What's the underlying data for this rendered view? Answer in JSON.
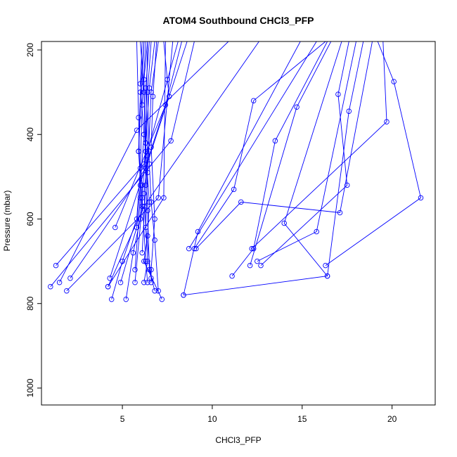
{
  "chart_data": {
    "type": "scatter",
    "title": "ATOM4 Southbound CHCl3_PFP",
    "xlabel": "CHCl3_PFP",
    "ylabel": "Pressure (mbar)",
    "xlim": [
      0.5,
      22.4
    ],
    "ylim": [
      1040,
      180
    ],
    "y_reversed": true,
    "x_ticks": [
      5,
      10,
      15,
      20
    ],
    "y_ticks": [
      200,
      400,
      600,
      800,
      1000
    ],
    "grid": false,
    "legend": "none",
    "style": {
      "line_color": "#0000ff",
      "marker": "open-circle"
    },
    "series": [
      {
        "points": [
          [
            6.2,
            180
          ],
          [
            6.0,
            300
          ],
          [
            5.9,
            440
          ],
          [
            6.1,
            520
          ],
          [
            6.0,
            600
          ],
          [
            5.6,
            680
          ],
          [
            5.2,
            790
          ]
        ]
      },
      {
        "points": [
          [
            6.3,
            180
          ],
          [
            6.1,
            330
          ],
          [
            6.0,
            480
          ],
          [
            5.8,
            600
          ],
          [
            5.0,
            700
          ],
          [
            4.4,
            790
          ]
        ]
      },
      {
        "points": [
          [
            6.4,
            180
          ],
          [
            6.2,
            270
          ],
          [
            6.3,
            440
          ],
          [
            6.5,
            560
          ],
          [
            6.4,
            640
          ],
          [
            6.2,
            700
          ],
          [
            7.2,
            790
          ]
        ]
      },
      {
        "points": [
          [
            6.6,
            180
          ],
          [
            6.4,
            300
          ],
          [
            6.5,
            470
          ],
          [
            6.6,
            560
          ],
          [
            6.8,
            650
          ],
          [
            7.0,
            770
          ]
        ]
      },
      {
        "points": [
          [
            6.8,
            180
          ],
          [
            6.5,
            290
          ],
          [
            6.3,
            420
          ],
          [
            6.1,
            550
          ],
          [
            6.3,
            700
          ],
          [
            6.4,
            750
          ]
        ]
      },
      {
        "points": [
          [
            6.9,
            180
          ],
          [
            6.7,
            310
          ],
          [
            6.6,
            430
          ],
          [
            6.8,
            600
          ],
          [
            6.6,
            720
          ],
          [
            6.6,
            750
          ]
        ]
      },
      {
        "points": [
          [
            6.1,
            180
          ],
          [
            6.0,
            280
          ],
          [
            6.2,
            400
          ],
          [
            6.0,
            520
          ],
          [
            5.8,
            620
          ],
          [
            4.9,
            750
          ]
        ]
      },
      {
        "points": [
          [
            6.5,
            180
          ],
          [
            6.3,
            290
          ],
          [
            6.4,
            450
          ],
          [
            6.2,
            540
          ],
          [
            6.4,
            700
          ],
          [
            6.2,
            750
          ]
        ]
      },
      {
        "points": [
          [
            6.2,
            180
          ],
          [
            5.9,
            440
          ],
          [
            6.1,
            570
          ],
          [
            5.7,
            750
          ]
        ]
      },
      {
        "points": [
          [
            6.4,
            180
          ],
          [
            6.3,
            420
          ],
          [
            6.4,
            580
          ],
          [
            6.5,
            720
          ],
          [
            6.8,
            770
          ]
        ]
      },
      {
        "points": [
          [
            5.8,
            180
          ],
          [
            5.9,
            360
          ],
          [
            6.0,
            550
          ],
          [
            5.7,
            720
          ]
        ]
      },
      {
        "points": [
          [
            6.0,
            180
          ],
          [
            6.2,
            300
          ],
          [
            6.3,
            520
          ],
          [
            6.1,
            680
          ]
        ]
      },
      {
        "points": [
          [
            7.0,
            180
          ],
          [
            6.6,
            300
          ],
          [
            6.4,
            490
          ],
          [
            6.3,
            620
          ],
          [
            6.6,
            740
          ]
        ]
      },
      {
        "points": [
          [
            7.4,
            180
          ],
          [
            7.3,
            550
          ],
          [
            4.2,
            760
          ]
        ]
      },
      {
        "points": [
          [
            7.3,
            180
          ],
          [
            7.5,
            270
          ],
          [
            7.6,
            310
          ],
          [
            4.6,
            620
          ]
        ]
      },
      {
        "points": [
          [
            7.8,
            180
          ],
          [
            7.0,
            550
          ],
          [
            1.9,
            770
          ]
        ]
      },
      {
        "points": [
          [
            8.1,
            180
          ],
          [
            6.2,
            470
          ],
          [
            1.3,
            710
          ]
        ]
      },
      {
        "points": [
          [
            8.3,
            180
          ],
          [
            7.4,
            330
          ],
          [
            4.3,
            740
          ]
        ]
      },
      {
        "points": [
          [
            8.6,
            180
          ],
          [
            6.3,
            480
          ],
          [
            2.1,
            740
          ]
        ]
      },
      {
        "points": [
          [
            9.0,
            180
          ],
          [
            7.7,
            415
          ],
          [
            1.0,
            760
          ]
        ]
      },
      {
        "points": [
          [
            10.9,
            180
          ],
          [
            5.8,
            390
          ],
          [
            1.5,
            750
          ]
        ]
      },
      {
        "points": [
          [
            12.6,
            180
          ],
          [
            6.2,
            570
          ],
          [
            4.2,
            760
          ]
        ]
      },
      {
        "points": [
          [
            14.9,
            180
          ],
          [
            9.2,
            630
          ],
          [
            8.4,
            780
          ]
        ]
      },
      {
        "points": [
          [
            15.8,
            180
          ],
          [
            8.7,
            670
          ]
        ]
      },
      {
        "points": [
          [
            16.3,
            180
          ],
          [
            12.3,
            320
          ],
          [
            11.2,
            530
          ],
          [
            9.0,
            670
          ]
        ]
      },
      {
        "points": [
          [
            16.6,
            180
          ],
          [
            14.7,
            335
          ],
          [
            12.1,
            710
          ]
        ]
      },
      {
        "points": [
          [
            16.4,
            180
          ],
          [
            13.5,
            415
          ],
          [
            12.3,
            670
          ],
          [
            11.1,
            735
          ]
        ]
      },
      {
        "points": [
          [
            17.6,
            180
          ],
          [
            17.0,
            305
          ],
          [
            17.5,
            520
          ],
          [
            12.7,
            710
          ]
        ]
      },
      {
        "points": [
          [
            18.9,
            180
          ],
          [
            17.1,
            585
          ],
          [
            11.6,
            560
          ],
          [
            9.1,
            670
          ]
        ]
      },
      {
        "points": [
          [
            19.2,
            180
          ],
          [
            20.1,
            275
          ],
          [
            21.6,
            550
          ],
          [
            16.3,
            710
          ]
        ]
      },
      {
        "points": [
          [
            19.5,
            180
          ],
          [
            19.7,
            370
          ],
          [
            12.2,
            670
          ]
        ]
      },
      {
        "points": [
          [
            18.4,
            180
          ],
          [
            17.6,
            345
          ],
          [
            16.4,
            735
          ],
          [
            8.4,
            780
          ]
        ]
      },
      {
        "points": [
          [
            17.2,
            180
          ],
          [
            14.0,
            610
          ],
          [
            16.4,
            735
          ]
        ]
      },
      {
        "points": [
          [
            18.0,
            180
          ],
          [
            15.8,
            630
          ],
          [
            12.5,
            700
          ]
        ]
      }
    ]
  }
}
